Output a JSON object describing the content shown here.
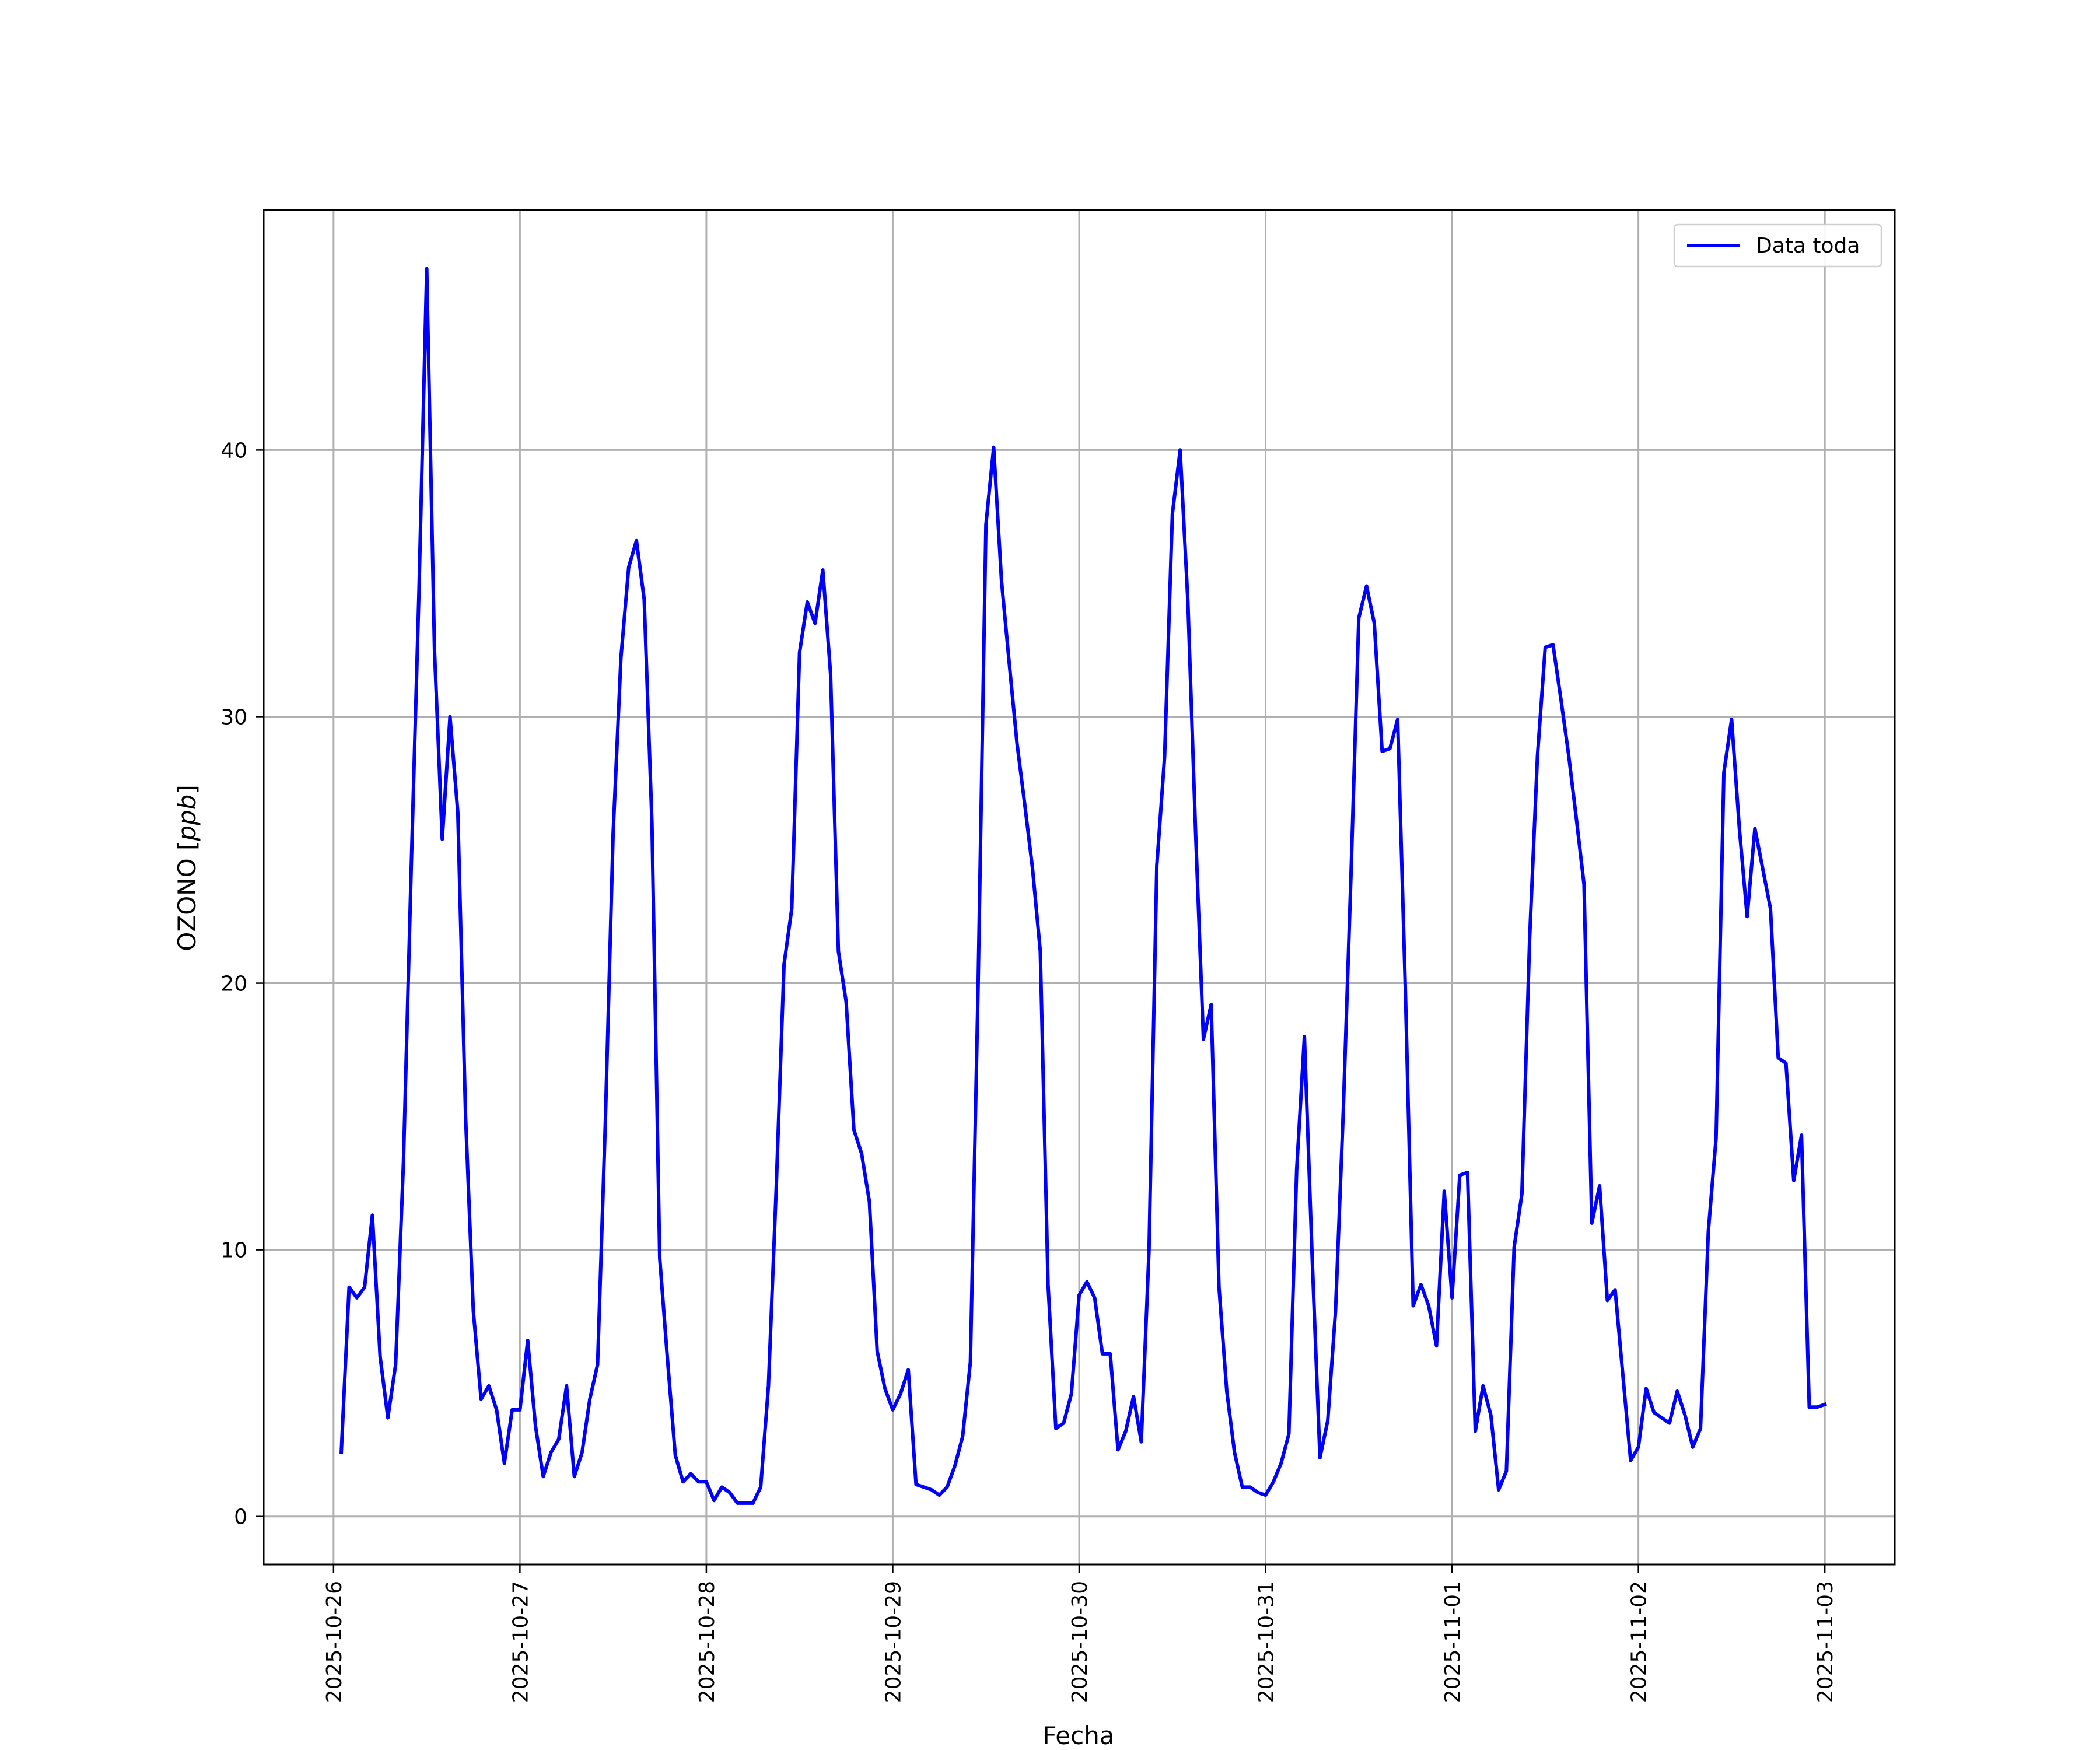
{
  "chart_data": {
    "type": "line",
    "xlabel": "Fecha",
    "ylabel_main": "OZONO [",
    "ylabel_italic": "ppb",
    "ylabel_end": "]",
    "xlim": [
      "2025-10-25T15:00",
      "2025-11-03T09:00"
    ],
    "ylim": [
      -1.8,
      49
    ],
    "grid": true,
    "legend_position": "top-right",
    "x_ticks": [
      "2025-10-26",
      "2025-10-27",
      "2025-10-28",
      "2025-10-29",
      "2025-10-30",
      "2025-10-31",
      "2025-11-01",
      "2025-11-02",
      "2025-11-03"
    ],
    "y_ticks": [
      0,
      10,
      20,
      30,
      40
    ],
    "series": [
      {
        "name": "Data toda",
        "color": "#0000ff",
        "x_start": "2025-10-26T01:00",
        "x_step_hours": 1,
        "values": [
          2.4,
          8.6,
          8.2,
          8.6,
          11.3,
          6.0,
          3.7,
          5.7,
          13.3,
          24.3,
          34.7,
          46.8,
          32.5,
          25.4,
          30.0,
          26.4,
          15.0,
          7.7,
          4.4,
          4.9,
          4.0,
          2.0,
          4.0,
          4.0,
          6.6,
          3.4,
          1.5,
          2.4,
          2.9,
          4.9,
          1.5,
          2.4,
          4.4,
          5.7,
          14.8,
          25.6,
          32.2,
          35.6,
          36.6,
          34.4,
          26.0,
          9.7,
          5.9,
          2.3,
          1.3,
          1.6,
          1.3,
          1.3,
          0.6,
          1.1,
          0.9,
          0.5,
          0.5,
          0.5,
          1.1,
          4.9,
          12.3,
          20.7,
          22.8,
          32.4,
          34.3,
          33.5,
          35.5,
          31.6,
          21.2,
          19.3,
          14.5,
          13.6,
          11.8,
          6.2,
          4.8,
          4.0,
          4.6,
          5.5,
          1.2,
          1.1,
          1.0,
          0.8,
          1.1,
          1.9,
          3.0,
          5.8,
          20.0,
          37.2,
          40.1,
          35.1,
          32.0,
          29.0,
          26.7,
          24.3,
          21.2,
          8.7,
          3.3,
          3.5,
          4.6,
          8.3,
          8.8,
          8.2,
          6.1,
          6.1,
          2.5,
          3.2,
          4.5,
          2.8,
          10.0,
          24.4,
          28.5,
          37.6,
          40.0,
          34.3,
          25.6,
          17.9,
          19.2,
          8.6,
          4.7,
          2.4,
          1.1,
          1.1,
          0.9,
          0.8,
          1.3,
          2.0,
          3.1,
          13.0,
          18.0,
          9.7,
          2.2,
          3.6,
          7.7,
          15.2,
          24.1,
          33.7,
          34.9,
          33.5,
          28.7,
          28.8,
          29.9,
          19.7,
          7.9,
          8.7,
          7.9,
          6.4,
          12.2,
          8.2,
          12.8,
          12.9,
          3.2,
          4.9,
          3.8,
          1.0,
          1.7,
          10.1,
          12.1,
          21.7,
          28.5,
          32.6,
          32.7,
          30.7,
          28.6,
          26.2,
          23.7,
          11.0,
          12.4,
          8.1,
          8.5,
          5.3,
          2.1,
          2.6,
          4.8,
          3.9,
          3.7,
          3.5,
          4.7,
          3.8,
          2.6,
          3.3,
          10.7,
          14.2,
          27.9,
          29.9,
          25.8,
          22.5,
          25.8,
          24.3,
          22.8,
          17.2,
          17.0,
          12.6,
          14.3,
          4.1,
          4.1,
          4.2
        ]
      }
    ]
  }
}
